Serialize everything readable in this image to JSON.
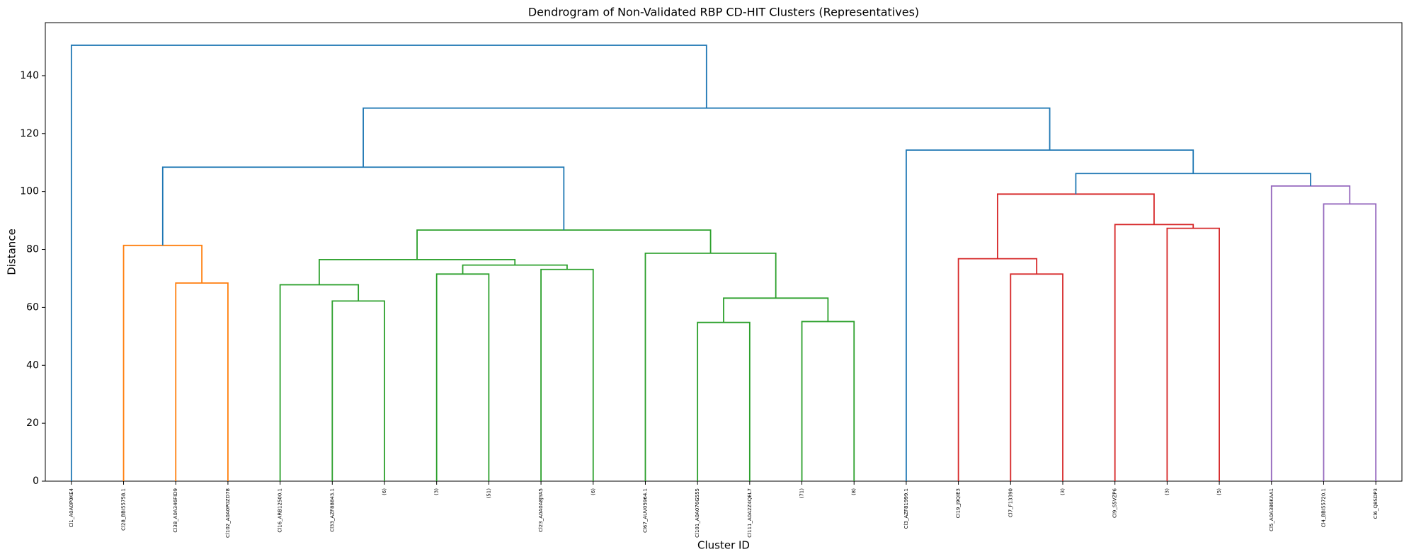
{
  "chart_data": {
    "type": "dendrogram",
    "title": "Dendrogram of Non-Validated RBP CD-HIT Clusters (Representatives)",
    "xlabel": "Cluster ID",
    "ylabel": "Distance",
    "leaves": [
      "Cl1_A0A0P0KE4",
      "Cl28_BBI55758.1",
      "Cl38_A0A346FID9",
      "Cl102_A0A0P0ZD78",
      "Cl16_ARB12500.1",
      "Cl33_AZF88843.1",
      "(6)",
      "(3)",
      "(51)",
      "Cl23_A0A0A8JYA5",
      "(6)",
      "Cl67_AUV05964.1",
      "Cl101_A0A076G555",
      "Cl111_A0A2Z4QEL7",
      "(71)",
      "(8)",
      "Cl3_AZF81999.1",
      "Cl19_J9QIE3",
      "Cl7_F13390",
      "(3)",
      "Cl9_S5VZP6",
      "(3)",
      "(5)",
      "Cl5_A0A386KAA1",
      "Cl4_BBI55720.1",
      "Cl6_Q8SDP3"
    ],
    "links": [
      {
        "children": [
          12,
          13
        ],
        "height": 54.8,
        "color": "#2ca02c"
      },
      {
        "children": [
          14,
          15
        ],
        "height": 55.1,
        "color": "#2ca02c"
      },
      {
        "children": [
          5,
          6
        ],
        "height": 62.2,
        "color": "#2ca02c"
      },
      {
        "children": [
          26,
          27
        ],
        "height": 63.2,
        "color": "#2ca02c"
      },
      {
        "children": [
          4,
          28
        ],
        "height": 67.8,
        "color": "#2ca02c"
      },
      {
        "children": [
          2,
          3
        ],
        "height": 68.4,
        "color": "#ff7f0e"
      },
      {
        "children": [
          7,
          8
        ],
        "height": 71.5,
        "color": "#2ca02c"
      },
      {
        "children": [
          18,
          19
        ],
        "height": 71.5,
        "color": "#d62728"
      },
      {
        "children": [
          9,
          10
        ],
        "height": 73.1,
        "color": "#2ca02c"
      },
      {
        "children": [
          32,
          34
        ],
        "height": 74.6,
        "color": "#2ca02c"
      },
      {
        "children": [
          30,
          35
        ],
        "height": 76.5,
        "color": "#2ca02c"
      },
      {
        "children": [
          17,
          33
        ],
        "height": 76.8,
        "color": "#d62728"
      },
      {
        "children": [
          11,
          29
        ],
        "height": 78.7,
        "color": "#2ca02c"
      },
      {
        "children": [
          1,
          31
        ],
        "height": 81.4,
        "color": "#ff7f0e"
      },
      {
        "children": [
          36,
          38
        ],
        "height": 86.7,
        "color": "#2ca02c"
      },
      {
        "children": [
          21,
          22
        ],
        "height": 87.3,
        "color": "#d62728"
      },
      {
        "children": [
          20,
          41
        ],
        "height": 88.6,
        "color": "#d62728"
      },
      {
        "children": [
          24,
          25
        ],
        "height": 95.7,
        "color": "#9467bd"
      },
      {
        "children": [
          37,
          42
        ],
        "height": 99.1,
        "color": "#d62728"
      },
      {
        "children": [
          23,
          43
        ],
        "height": 101.9,
        "color": "#9467bd"
      },
      {
        "children": [
          44,
          45
        ],
        "height": 106.2,
        "color": "#1f77b4"
      },
      {
        "children": [
          39,
          40
        ],
        "height": 108.4,
        "color": "#1f77b4"
      },
      {
        "children": [
          16,
          46
        ],
        "height": 114.3,
        "color": "#1f77b4"
      },
      {
        "children": [
          47,
          48
        ],
        "height": 128.8,
        "color": "#1f77b4"
      },
      {
        "children": [
          0,
          49
        ],
        "height": 150.5,
        "color": "#1f77b4"
      }
    ],
    "ylim": [
      0,
      158.3
    ],
    "yticks": [
      0,
      20,
      40,
      60,
      80,
      100,
      120,
      140
    ]
  }
}
